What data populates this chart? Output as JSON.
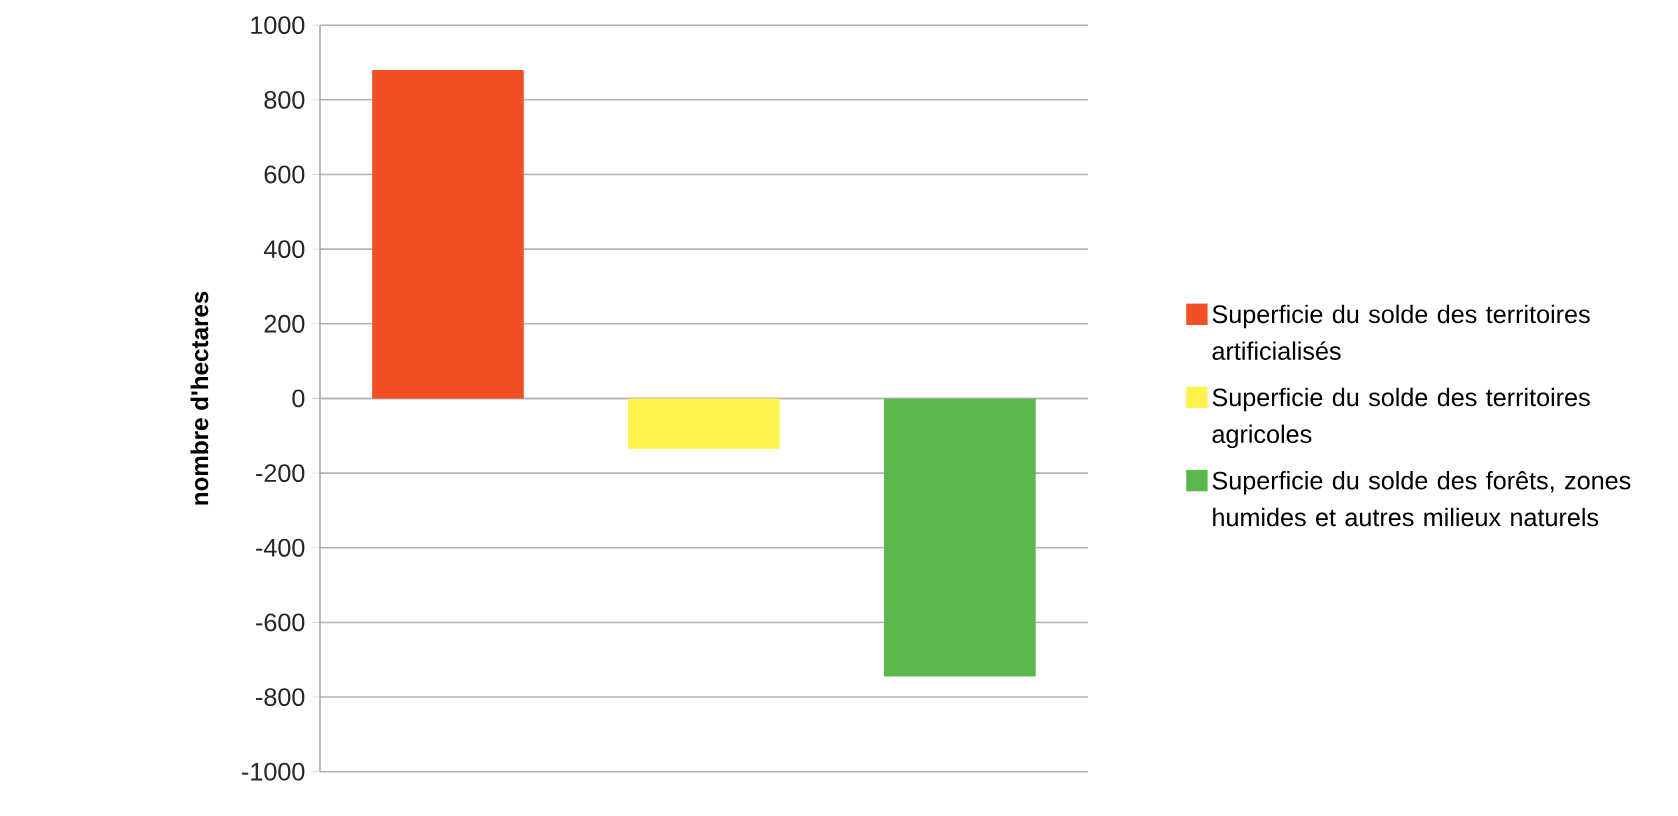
{
  "chart_data": {
    "type": "bar",
    "ylabel": "nombre d'hectares",
    "categories": [
      null,
      null,
      null
    ],
    "series": [
      {
        "name": "Superficie du solde des territoires artificialisés",
        "color": "#f05023",
        "values": [
          880,
          null,
          null
        ]
      },
      {
        "name": "Superficie du solde des territoires agricoles",
        "color": "#fff24a",
        "values": [
          null,
          -135,
          null
        ]
      },
      {
        "name": "Superficie du solde des forêts, zones humides et autres milieux naturels",
        "color": "#5bb84b",
        "values": [
          null,
          null,
          -745
        ]
      }
    ],
    "ylim": [
      -1000,
      1000
    ],
    "yticks": [
      -1000,
      -800,
      -600,
      -400,
      -200,
      0,
      200,
      400,
      600,
      800,
      1000
    ],
    "grid": "y",
    "legend": "right",
    "tick_labels": "y"
  }
}
